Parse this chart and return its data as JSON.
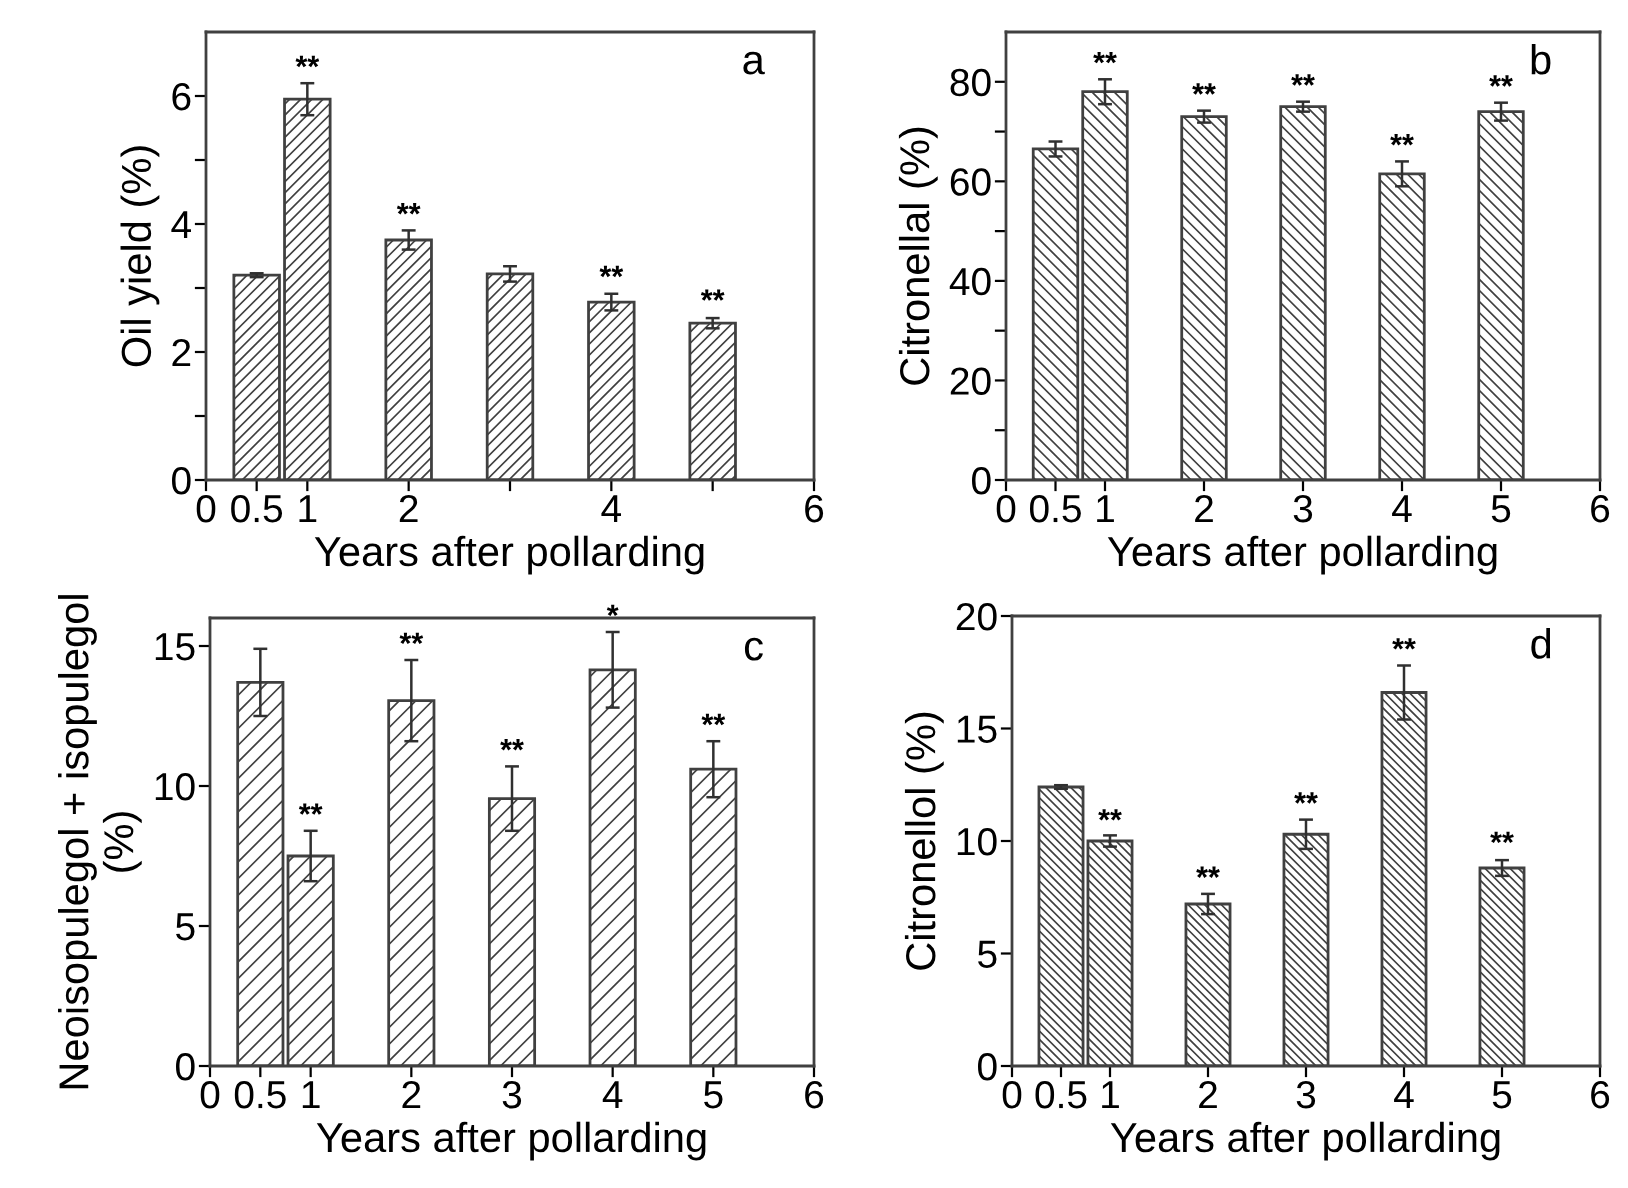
{
  "chart_data": [
    {
      "type": "bar",
      "x": [
        0.5,
        1,
        2,
        3,
        4,
        5
      ],
      "values": [
        3.2,
        5.95,
        3.75,
        3.22,
        2.78,
        2.45
      ],
      "errors": [
        0.03,
        0.25,
        0.15,
        0.12,
        0.13,
        0.08
      ],
      "color": "#404040",
      "xlabel": "Years after pollarding",
      "ylabel": "Oil yield (%)",
      "xlim": [
        0,
        6
      ],
      "xticks": [
        0,
        0.5,
        1,
        2,
        {
          "value": 3,
          "label": null
        },
        4,
        {
          "value": 5,
          "label": null
        },
        6
      ],
      "ylim": [
        0,
        7
      ],
      "yticks": [
        0,
        {
          "value": 1,
          "label": null
        },
        2,
        {
          "value": 3,
          "label": null
        },
        4,
        {
          "value": 5,
          "label": null
        },
        6
      ],
      "grid": false,
      "legend": false,
      "annotations": [
        "a",
        {
          "text": "**",
          "x": 1,
          "y": 6.2
        },
        {
          "text": "**",
          "x": 2,
          "y": 3.9
        },
        {
          "text": "**",
          "x": 4,
          "y": 2.92
        },
        {
          "text": "**",
          "x": 5,
          "y": 2.55
        }
      ]
    },
    {
      "type": "bar",
      "x": [
        0.5,
        1,
        2,
        3,
        4,
        5
      ],
      "values": [
        66.5,
        78,
        73,
        75,
        61.5,
        74
      ],
      "errors": [
        1.5,
        2.5,
        1.2,
        1.0,
        2.5,
        1.8
      ],
      "color": "#404040",
      "xlabel": "Years after pollarding",
      "ylabel": "Citronellal (%)",
      "xlim": [
        0,
        6
      ],
      "xticks": [
        0,
        0.5,
        1,
        2,
        3,
        4,
        5,
        6
      ],
      "ylim": [
        0,
        90
      ],
      "yticks": [
        0,
        {
          "value": 10,
          "label": null
        },
        20,
        {
          "value": 30,
          "label": null
        },
        40,
        {
          "value": 50,
          "label": null
        },
        60,
        {
          "value": 70,
          "label": null
        },
        80
      ],
      "grid": false,
      "legend": false,
      "annotations": [
        "b",
        {
          "text": "**",
          "x": 1,
          "y": 80.5
        },
        {
          "text": "**",
          "x": 2,
          "y": 74.2
        },
        {
          "text": "**",
          "x": 3,
          "y": 76
        },
        {
          "text": "**",
          "x": 4,
          "y": 64
        },
        {
          "text": "**",
          "x": 5,
          "y": 75.8
        }
      ]
    },
    {
      "type": "bar",
      "x": [
        0.5,
        1,
        2,
        3,
        4,
        5
      ],
      "values": [
        13.7,
        7.5,
        13.05,
        9.55,
        14.15,
        10.6
      ],
      "errors": [
        1.2,
        0.9,
        1.45,
        1.15,
        1.35,
        1.0
      ],
      "color": "#404040",
      "xlabel": "Years after pollarding",
      "ylabel": "Neoisopulegol + isopulegol\n(%)",
      "xlim": [
        0,
        6
      ],
      "xticks": [
        0,
        0.5,
        1,
        2,
        3,
        4,
        5,
        6
      ],
      "ylim": [
        0,
        16
      ],
      "yticks": [
        0,
        5,
        10,
        15
      ],
      "grid": false,
      "legend": false,
      "annotations": [
        "c",
        {
          "text": "**",
          "x": 1,
          "y": 8.4
        },
        {
          "text": "**",
          "x": 2,
          "y": 14.5
        },
        {
          "text": "**",
          "x": 3,
          "y": 10.7
        },
        {
          "text": "*",
          "x": 4,
          "y": 15.5
        },
        {
          "text": "**",
          "x": 5,
          "y": 11.6
        }
      ]
    },
    {
      "type": "bar",
      "x": [
        0.5,
        1,
        2,
        3,
        4,
        5
      ],
      "values": [
        12.4,
        10.0,
        7.2,
        10.3,
        16.6,
        8.8
      ],
      "errors": [
        0.08,
        0.25,
        0.45,
        0.65,
        1.2,
        0.35
      ],
      "color": "#404040",
      "xlabel": "Years after pollarding",
      "ylabel": "Citronellol (%)",
      "xlim": [
        0,
        6
      ],
      "xticks": [
        0,
        0.5,
        1,
        2,
        3,
        4,
        5,
        6
      ],
      "ylim": [
        0,
        20
      ],
      "yticks": [
        0,
        5,
        10,
        15,
        20
      ],
      "grid": false,
      "legend": false,
      "annotations": [
        "d",
        {
          "text": "**",
          "x": 1,
          "y": 10.2
        },
        {
          "text": "**",
          "x": 2,
          "y": 7.65
        },
        {
          "text": "**",
          "x": 3,
          "y": 10.95
        },
        {
          "text": "**",
          "x": 4,
          "y": 17.8
        },
        {
          "text": "**",
          "x": 5,
          "y": 9.2
        }
      ]
    }
  ]
}
